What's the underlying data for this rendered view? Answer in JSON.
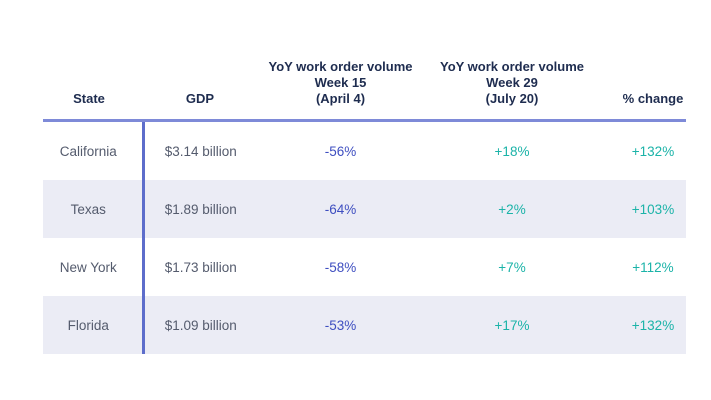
{
  "colors": {
    "header-text": "#1e2c4f",
    "body-text": "#545b6d",
    "header-rule": "#7e8ad8",
    "divider": "#5d6dcb",
    "stripe": "#ebecf5",
    "negative": "#3e4ec0",
    "positive": "#1bb3a8",
    "background": "#ffffff"
  },
  "table": {
    "columns": [
      {
        "key": "state",
        "label": "State"
      },
      {
        "key": "gdp",
        "label": "GDP"
      },
      {
        "key": "week15",
        "label": "YoY work order volume\nWeek 15\n(April 4)"
      },
      {
        "key": "week29",
        "label": "YoY work order volume\nWeek 29\n(July 20)"
      },
      {
        "key": "change",
        "label": "% change"
      }
    ],
    "rows": [
      {
        "state": "California",
        "gdp": "$3.14 billion",
        "week15": "-56%",
        "week29": "+18%",
        "change": "+132%"
      },
      {
        "state": "Texas",
        "gdp": "$1.89 billion",
        "week15": "-64%",
        "week29": "+2%",
        "change": "+103%"
      },
      {
        "state": "New York",
        "gdp": "$1.73 billion",
        "week15": "-58%",
        "week29": "+7%",
        "change": "+112%"
      },
      {
        "state": "Florida",
        "gdp": "$1.09 billion",
        "week15": "-53%",
        "week29": "+17%",
        "change": "+132%"
      }
    ]
  },
  "chart_data": {
    "type": "table",
    "title": "",
    "columns": [
      "State",
      "GDP",
      "YoY work order volume Week 15 (April 4)",
      "YoY work order volume Week 29 (July 20)",
      "% change"
    ],
    "rows": [
      [
        "California",
        "$3.14 billion",
        "-56%",
        "+18%",
        "+132%"
      ],
      [
        "Texas",
        "$1.89 billion",
        "-64%",
        "+2%",
        "+103%"
      ],
      [
        "New York",
        "$1.73 billion",
        "-58%",
        "+7%",
        "+112%"
      ],
      [
        "Florida",
        "$1.09 billion",
        "-53%",
        "+17%",
        "+132%"
      ]
    ],
    "value_styles": {
      "week15_values_color": "#3e4ec0",
      "week29_values_color": "#1bb3a8",
      "change_values_color": "#1bb3a8"
    },
    "layout": {
      "striped_rows": [
        2,
        4
      ],
      "header_rule": true,
      "state_column_divider": true
    }
  }
}
